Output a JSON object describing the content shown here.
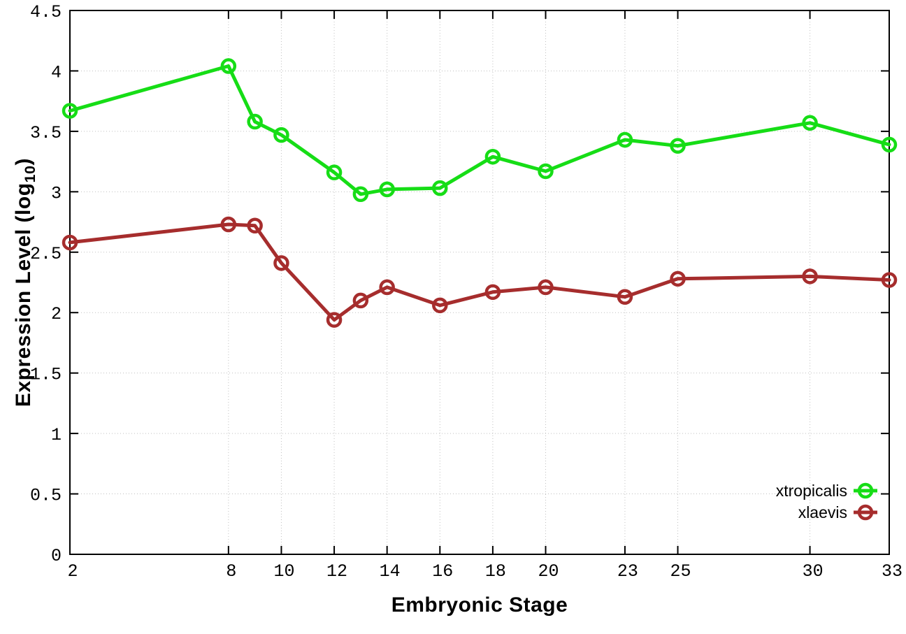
{
  "figure": {
    "background": "#ffffff",
    "x_axis_title": "Embryonic Stage",
    "y_axis_title": {
      "prefix": "Expression Level (log",
      "sub": "10",
      "suffix": ")"
    }
  },
  "chart_data": {
    "type": "line",
    "title": "",
    "xlabel": "Embryonic Stage",
    "ylabel": "Expression Level (log10)",
    "xlim": [
      2,
      33
    ],
    "ylim": [
      0,
      4.5
    ],
    "grid": true,
    "grid_style": "dotted",
    "grid_color": "#c0c0c0",
    "border_color": "#000000",
    "legend_position": "bottom-right-inside",
    "x_tick_labels": [
      "2",
      "8",
      "10",
      "12",
      "14",
      "16",
      "18",
      "20",
      "23",
      "25",
      "30",
      "33"
    ],
    "x_tick_values": [
      2,
      8,
      10,
      12,
      14,
      16,
      18,
      20,
      23,
      25,
      30,
      33
    ],
    "y_tick_labels": [
      "0",
      "0.5",
      "1",
      "1.5",
      "2",
      "2.5",
      "3",
      "3.5",
      "4",
      "4.5"
    ],
    "y_tick_values": [
      0,
      0.5,
      1,
      1.5,
      2,
      2.5,
      3,
      3.5,
      4,
      4.5
    ],
    "x": [
      2,
      8,
      9,
      10,
      12,
      13,
      14,
      16,
      18,
      20,
      23,
      25,
      30,
      33
    ],
    "series": [
      {
        "name": "xtropicalis",
        "color": "#16dd16",
        "marker": "open-circle",
        "values": [
          3.67,
          4.04,
          3.58,
          3.47,
          3.16,
          2.98,
          3.02,
          3.03,
          3.29,
          3.17,
          3.43,
          3.38,
          3.57,
          3.39
        ]
      },
      {
        "name": "xlaevis",
        "color": "#a62d2d",
        "marker": "open-circle",
        "values": [
          2.58,
          2.73,
          2.72,
          2.41,
          1.94,
          2.1,
          2.21,
          2.06,
          2.17,
          2.21,
          2.13,
          2.28,
          2.3,
          2.27
        ]
      }
    ]
  }
}
